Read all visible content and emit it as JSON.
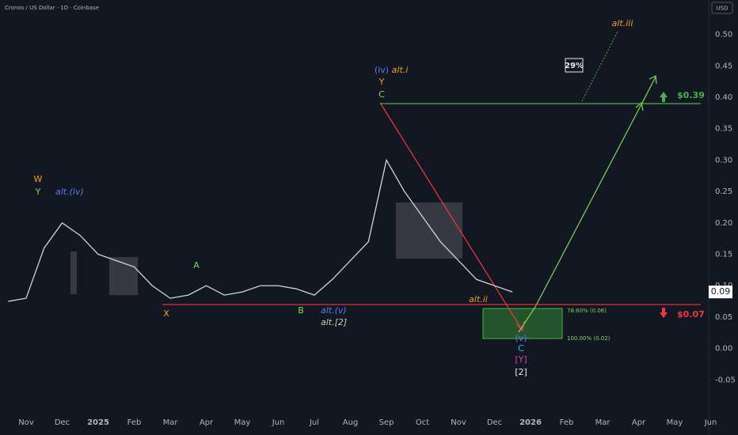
{
  "chart_data": {
    "type": "line",
    "title": "Cronos / US Dollar · 1D · Coinbase",
    "currency": "USD",
    "categories": [
      null,
      "Nov",
      null,
      "Dec",
      null,
      "2025",
      null,
      "Feb",
      null,
      "Mar",
      null,
      "Apr",
      null,
      "May",
      null,
      "Jun",
      null,
      "Jul",
      null,
      "Aug",
      null,
      "Sep",
      null,
      "Oct",
      null,
      "Nov",
      null,
      "Dec",
      null,
      "2026",
      null,
      "Feb",
      null,
      "Mar",
      null,
      "Apr",
      null,
      "May",
      null,
      "Jun"
    ],
    "values": [
      0.075,
      0.08,
      0.16,
      0.2,
      0.18,
      0.15,
      0.14,
      0.13,
      0.1,
      0.08,
      0.085,
      0.1,
      0.085,
      0.09,
      0.1,
      0.1,
      0.095,
      0.085,
      0.11,
      0.14,
      0.17,
      0.3,
      0.25,
      0.21,
      0.17,
      0.14,
      0.11,
      0.1,
      0.09,
      null,
      null,
      null,
      null,
      null,
      null,
      null,
      null,
      null,
      null,
      null
    ],
    "color": "#d1d4dc",
    "ylim": [
      -0.1,
      0.555
    ],
    "yticks": [
      {
        "value": 0.5,
        "label": "0.50"
      },
      0.45,
      {
        "value": 0.4,
        "label": "0.40"
      },
      0.35,
      {
        "value": 0.3,
        "label": "0.30"
      },
      0.25,
      {
        "value": 0.2,
        "label": "0.20"
      },
      0.15,
      {
        "value": 0.1,
        "label": "0.10"
      },
      0.05,
      {
        "value": 0,
        "label": "0.00"
      },
      -0.05
    ],
    "last_price": 0.09,
    "levels": [
      {
        "value": 0.39,
        "label": "$0.39",
        "color": "#4caf50"
      },
      {
        "value": 0.07,
        "label": "$0.07",
        "color": "#f23645"
      }
    ],
    "fib_labels": [
      "78.60% (0.06)",
      "100.00% (0.02)"
    ],
    "target_label": "29%",
    "annotations": [
      {
        "text": "W",
        "color": "#f0a030"
      },
      {
        "text": "Y",
        "color": "#7ed957"
      },
      {
        "text": "alt.(iv)",
        "color": "#5b7cf0"
      },
      {
        "text": "X",
        "color": "#f0a030"
      },
      {
        "text": "A",
        "color": "#7ed957"
      },
      {
        "text": "B",
        "color": "#7ed957"
      },
      {
        "text": "alt.(v)",
        "color": "#5b7cf0"
      },
      {
        "text": "alt.[2]",
        "color": "#b8d8b0"
      },
      {
        "text": "(iv)",
        "color": "#5b7cf0"
      },
      {
        "text": "alt.i",
        "color": "#f0a030"
      },
      {
        "text": "Y",
        "color": "#f0a030"
      },
      {
        "text": "C",
        "color": "#7ed957"
      },
      {
        "text": "alt.ii",
        "color": "#f0a030"
      },
      {
        "text": "(v)",
        "color": "#5b7cf0"
      },
      {
        "text": "C",
        "color": "#26c6da"
      },
      {
        "text": "[Y]",
        "color": "#e040a0"
      },
      {
        "text": "[2]",
        "color": "#e8e8e8"
      },
      {
        "text": "alt.iii",
        "color": "#f0a030"
      }
    ]
  }
}
